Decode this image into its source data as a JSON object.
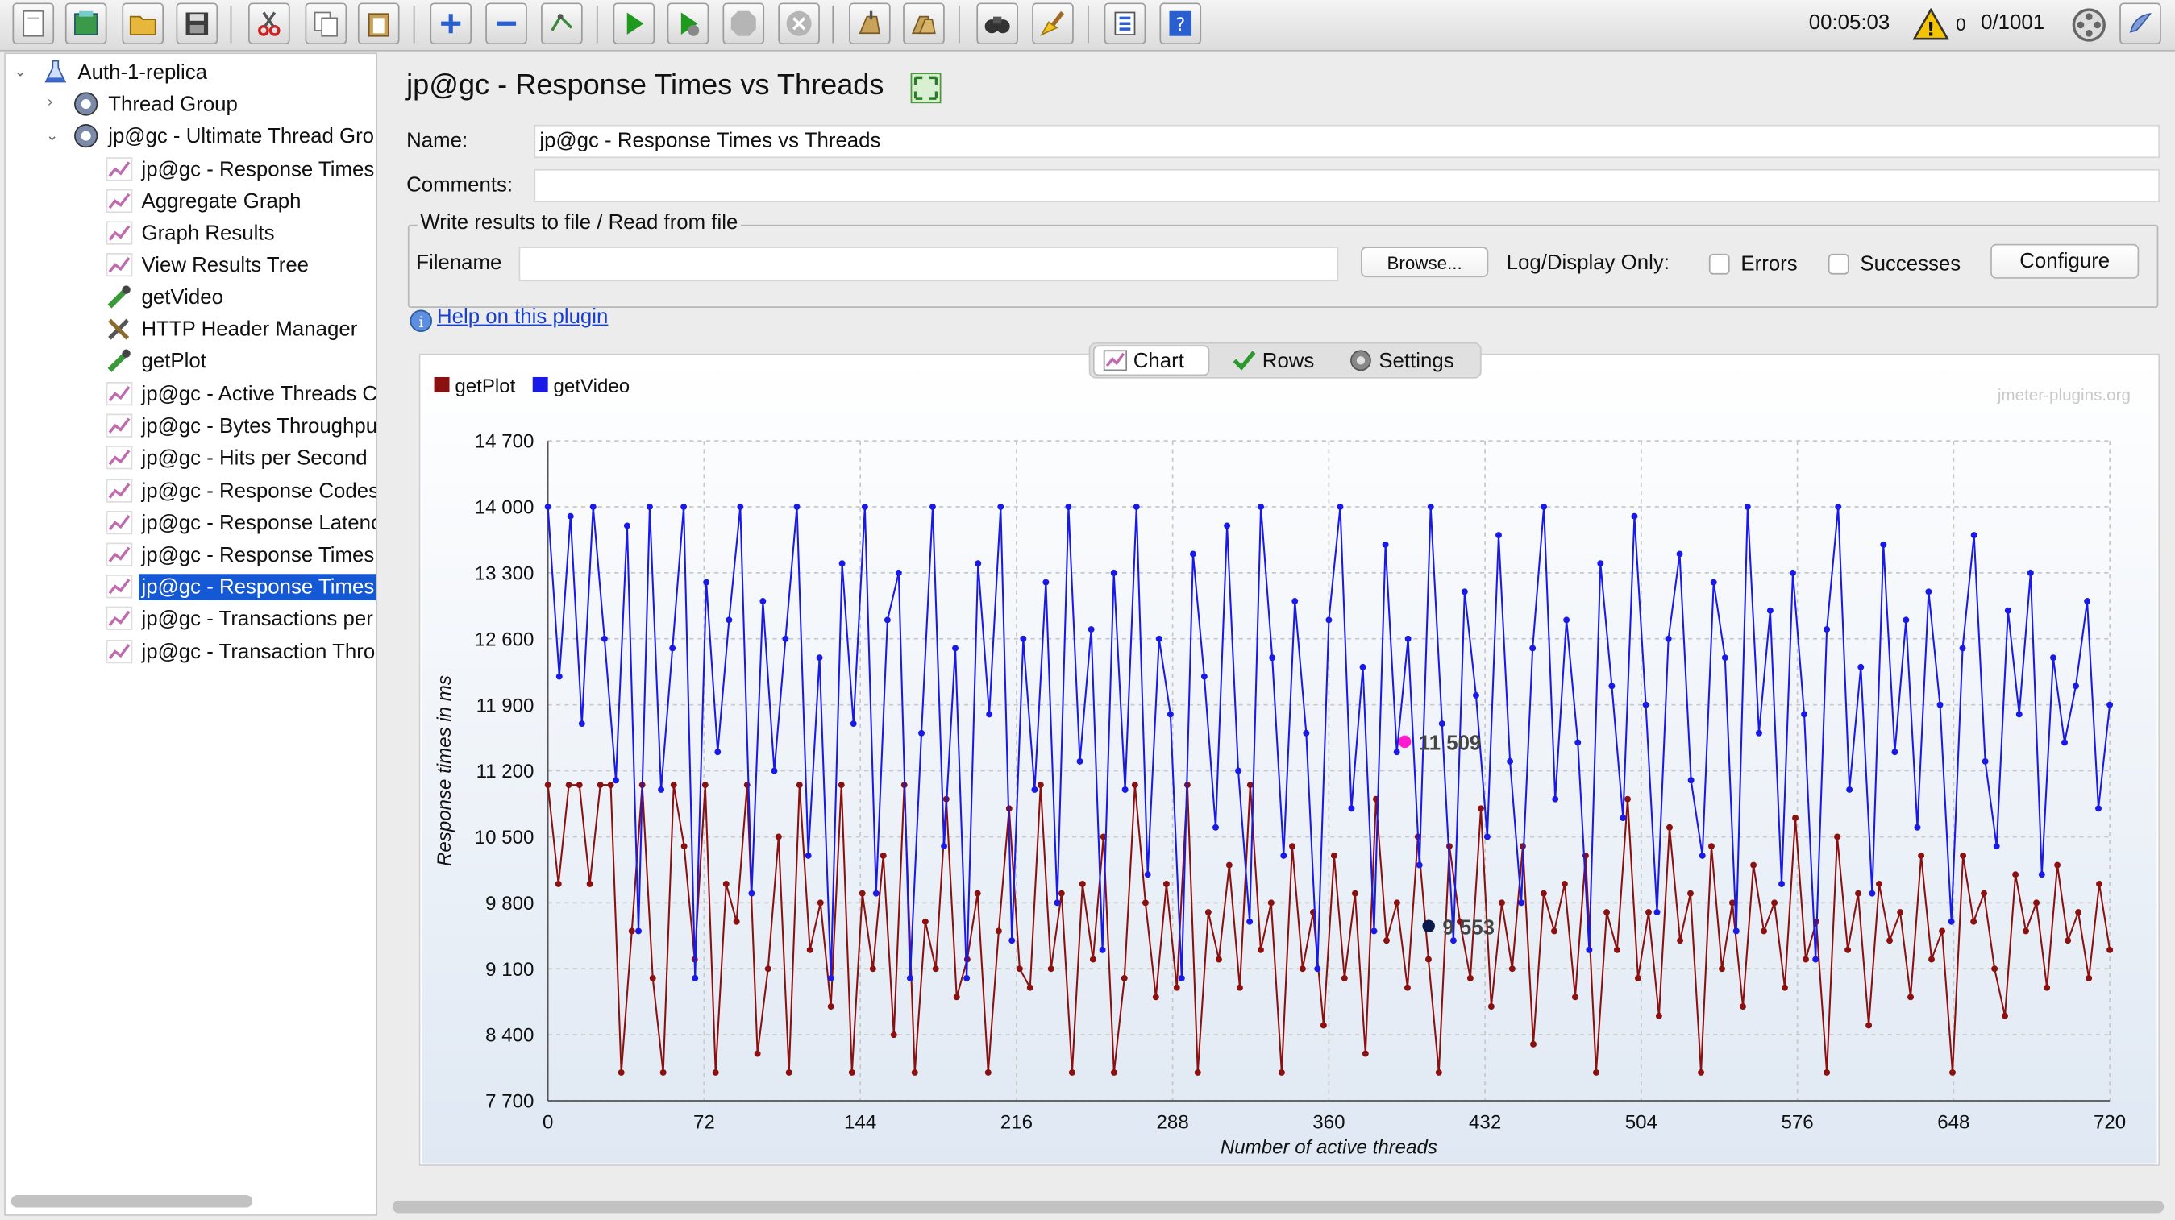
{
  "toolbar": {
    "elapsed": "00:05:03",
    "warnings": "0",
    "threads": "0/1001"
  },
  "tree": {
    "items": [
      {
        "label": "Auth-1-replica"
      },
      {
        "label": "Thread Group"
      },
      {
        "label": "jp@gc - Ultimate Thread Gro"
      },
      {
        "label": "jp@gc - Response Times"
      },
      {
        "label": "Aggregate Graph"
      },
      {
        "label": "Graph Results"
      },
      {
        "label": "View Results Tree"
      },
      {
        "label": "getVideo"
      },
      {
        "label": "HTTP Header Manager"
      },
      {
        "label": "getPlot"
      },
      {
        "label": "jp@gc - Active Threads C"
      },
      {
        "label": "jp@gc - Bytes Throughpu"
      },
      {
        "label": "jp@gc - Hits per Second"
      },
      {
        "label": "jp@gc - Response Codes"
      },
      {
        "label": "jp@gc - Response Latenc"
      },
      {
        "label": "jp@gc - Response Times"
      },
      {
        "label": "jp@gc - Response Times"
      },
      {
        "label": "jp@gc - Transactions per"
      },
      {
        "label": "jp@gc - Transaction Thro"
      }
    ]
  },
  "panel": {
    "title": "jp@gc - Response Times vs Threads",
    "name_label": "Name:",
    "name_value": "jp@gc - Response Times vs Threads",
    "comments_label": "Comments:",
    "comments_value": "",
    "file_group_title": "Write results to file / Read from file",
    "filename_label": "Filename",
    "filename_value": "",
    "browse_label": "Browse...",
    "log_display_label": "Log/Display Only:",
    "errors_label": "Errors",
    "successes_label": "Successes",
    "configure_label": "Configure",
    "help_link": "Help on this plugin"
  },
  "tabs": {
    "chart": "Chart",
    "rows": "Rows",
    "settings": "Settings"
  },
  "chart_data": {
    "type": "line",
    "watermark": "jmeter-plugins.org",
    "xlabel": "Number of active threads",
    "ylabel": "Response times in ms",
    "xlim": [
      0,
      720
    ],
    "ylim": [
      7700,
      14700
    ],
    "x_ticks": [
      "0",
      "72",
      "144",
      "216",
      "288",
      "360",
      "432",
      "504",
      "576",
      "648",
      "720"
    ],
    "y_ticks": [
      "14 700",
      "14 000",
      "13 300",
      "12 600",
      "11 900",
      "11 200",
      "10 500",
      "9 800",
      "9 100",
      "8 400",
      "7 700"
    ],
    "legend_position": "top-left",
    "grid": true,
    "series": [
      {
        "name": "getPlot",
        "color": "#8b1010",
        "values": [
          11050,
          10000,
          11050,
          11050,
          10000,
          11050,
          11050,
          8000,
          9500,
          11050,
          9000,
          8000,
          11050,
          10400,
          9200,
          11050,
          8000,
          10000,
          9600,
          11050,
          8200,
          9100,
          10500,
          8000,
          11050,
          9300,
          9800,
          8700,
          11050,
          8000,
          9900,
          9100,
          10300,
          8400,
          11050,
          8000,
          9600,
          9100,
          10900,
          8800,
          9200,
          9900,
          8000,
          9500,
          10800,
          9100,
          8900,
          11050,
          9100,
          9900,
          8000,
          10000,
          9200,
          10500,
          8000,
          9000,
          11050,
          9800,
          8800,
          10000,
          8900,
          11050,
          8000,
          9700,
          9200,
          10200,
          8900,
          11050,
          9300,
          9800,
          8000,
          10400,
          9100,
          9700,
          8500,
          10300,
          9000,
          9900,
          8200,
          10900,
          9400,
          9800,
          8900,
          10500,
          9200,
          8000,
          10400,
          9600,
          9000,
          10800,
          8700,
          9800,
          9100,
          10400,
          8300,
          9900,
          9500,
          10000,
          8800,
          10300,
          8000,
          9700,
          9300,
          10900,
          9000,
          9700,
          8600,
          10600,
          9400,
          9900,
          8000,
          10400,
          9100,
          9800,
          8700,
          10200,
          9500,
          9800,
          8900,
          10700,
          9200,
          9600,
          8000,
          10500,
          9300,
          9900,
          8500,
          10000,
          9400,
          9700,
          8800,
          10300,
          9200,
          9500,
          8000,
          10300,
          9600,
          9900,
          9100,
          8600,
          10100,
          9500,
          9800,
          8900,
          10200,
          9400,
          9700,
          9000,
          10000,
          9300
        ],
        "highlight": {
          "x": 406,
          "y": 9553,
          "label": "9 553"
        }
      },
      {
        "name": "getVideo",
        "color": "#1a1ae6",
        "values": [
          14000,
          12200,
          13900,
          11700,
          14000,
          12600,
          11100,
          13800,
          9500,
          14000,
          11000,
          12500,
          14000,
          9000,
          13200,
          11400,
          12800,
          14000,
          9900,
          13000,
          11200,
          12600,
          14000,
          10300,
          12400,
          9000,
          13400,
          11700,
          14000,
          9900,
          12800,
          13300,
          9000,
          11600,
          14000,
          10400,
          12500,
          9000,
          13400,
          11800,
          14000,
          9400,
          12600,
          11000,
          13200,
          9800,
          14000,
          11300,
          12700,
          9300,
          13300,
          11000,
          14000,
          10100,
          12600,
          11800,
          9000,
          13500,
          12200,
          10600,
          13800,
          11200,
          9600,
          14000,
          12400,
          10300,
          13000,
          11600,
          9100,
          12800,
          14000,
          10800,
          12300,
          9500,
          13600,
          11400,
          12600,
          10200,
          14000,
          11700,
          9400,
          13100,
          12000,
          10500,
          13700,
          11300,
          9800,
          12500,
          14000,
          10900,
          12800,
          11500,
          9300,
          13400,
          12100,
          10700,
          13900,
          11900,
          9700,
          12600,
          13500,
          11100,
          10300,
          13200,
          12400,
          9500,
          14000,
          11600,
          12900,
          10000,
          13300,
          11800,
          9200,
          12700,
          14000,
          11000,
          12300,
          9900,
          13600,
          11400,
          12800,
          10600,
          13100,
          11900,
          9600,
          12500,
          13700,
          11300,
          10400,
          12900,
          11800,
          13300,
          10100,
          12400,
          11500,
          12100,
          13000,
          10800,
          11900
        ],
        "highlight": {
          "x": 395,
          "y": 11509,
          "label": "11 509"
        }
      }
    ]
  }
}
